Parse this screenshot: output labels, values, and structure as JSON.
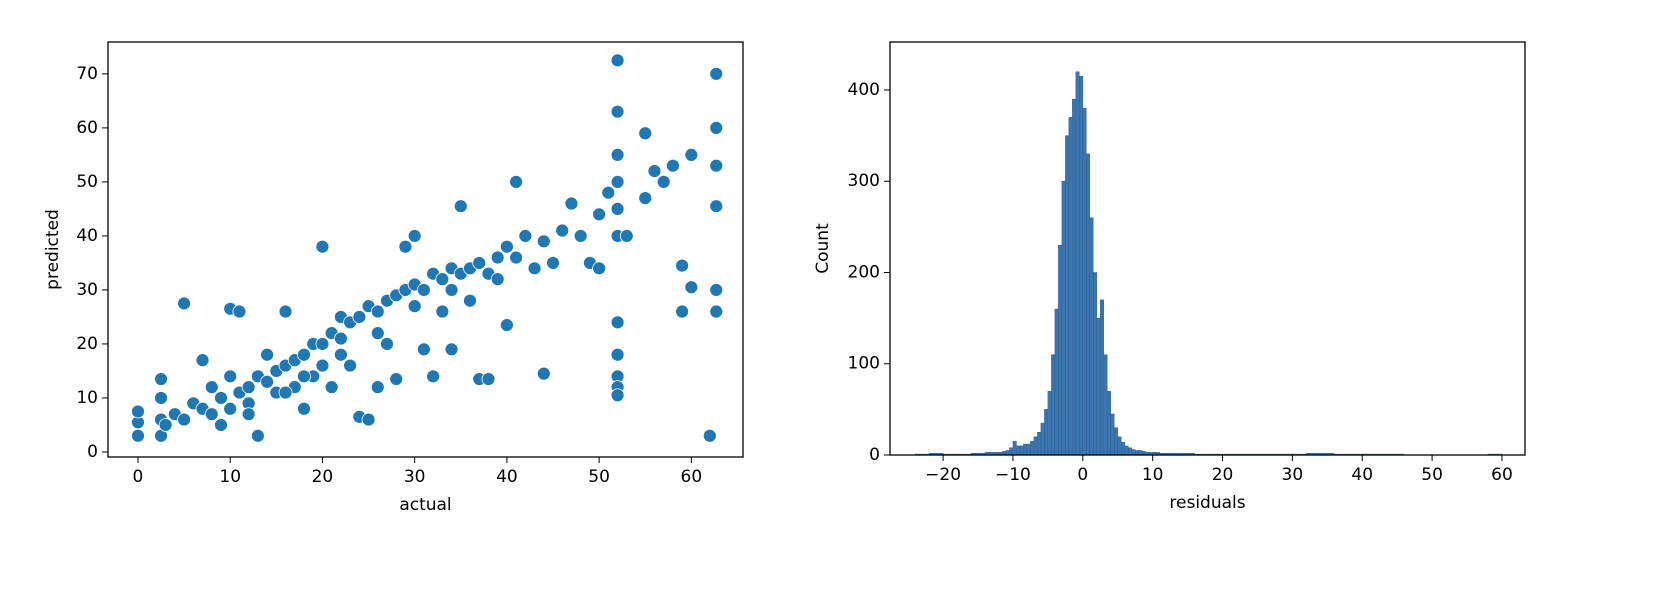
{
  "chart_data": [
    {
      "type": "scatter",
      "xlabel": "actual",
      "ylabel": "predicted",
      "color": "#1f77b4",
      "x": [
        0,
        0,
        0,
        2.5,
        2.5,
        2.5,
        2.5,
        3,
        4,
        5,
        5,
        6,
        7,
        7,
        8,
        8,
        9,
        10,
        10,
        10,
        11,
        11,
        12,
        12,
        13,
        13,
        14,
        14,
        15,
        15,
        16,
        16,
        17,
        17,
        18,
        18,
        19,
        19,
        20,
        20,
        20,
        21,
        21,
        22,
        22,
        23,
        23,
        24,
        24,
        25,
        25,
        26,
        26,
        27,
        27,
        28,
        28,
        29,
        29,
        30,
        30,
        31,
        31,
        32,
        32,
        33,
        33,
        34,
        34,
        35,
        35,
        36,
        36,
        37,
        37,
        38,
        38,
        39,
        39,
        40,
        40,
        41,
        41,
        42,
        43,
        44,
        44,
        45,
        46,
        47,
        48,
        49,
        50,
        50,
        51,
        52,
        52,
        52,
        52,
        52,
        52,
        52,
        52,
        52,
        52,
        52,
        53,
        55,
        55,
        56,
        57,
        58,
        59,
        59,
        60,
        60,
        62,
        62.7,
        62.7,
        62.7,
        62.7,
        62.7,
        62.7,
        16,
        18,
        22,
        26,
        30,
        34,
        12,
        9
      ],
      "values": [
        3,
        5.5,
        7.5,
        3,
        6,
        10,
        13.5,
        5,
        7,
        6,
        27.5,
        9,
        8,
        17,
        7,
        12,
        10,
        8,
        14,
        26.5,
        11,
        26,
        12,
        9,
        14,
        3,
        13,
        18,
        15,
        11,
        16,
        26,
        17,
        12,
        18,
        8,
        20,
        14,
        20,
        38,
        16,
        22,
        12,
        21,
        25,
        24,
        16,
        25,
        6.5,
        27,
        6,
        26,
        12,
        28,
        20,
        29,
        13.5,
        30,
        38,
        31,
        40,
        30,
        19,
        33,
        14,
        32,
        26,
        34,
        19,
        33,
        45.5,
        34,
        28,
        35,
        13.5,
        33,
        13.5,
        36,
        32,
        38,
        23.5,
        36,
        50,
        40,
        34,
        39,
        14.5,
        35,
        41,
        46,
        40,
        35,
        44,
        34,
        48,
        72.5,
        63,
        55,
        50,
        45,
        40,
        24,
        18,
        14,
        12,
        10.5,
        40,
        59,
        47,
        52,
        50,
        53,
        34.5,
        26,
        55,
        30.5,
        3,
        70,
        60,
        53,
        45.5,
        30,
        26,
        11,
        14,
        18,
        22,
        27,
        30,
        7,
        5
      ],
      "xlim": [
        -3.25,
        65.6
      ],
      "ylim": [
        -0.93,
        75.9
      ],
      "xticks": [
        0,
        10,
        20,
        30,
        40,
        50,
        60
      ],
      "yticks": [
        0,
        10,
        20,
        30,
        40,
        50,
        60,
        70
      ]
    },
    {
      "type": "histogram",
      "xlabel": "residuals",
      "ylabel": "Count",
      "color": "#3b75af",
      "bins": [
        -24,
        -22,
        -20,
        -18,
        -16,
        -14,
        -12,
        -11.5,
        -11,
        -10.5,
        -10,
        -9.5,
        -9,
        -8.5,
        -8,
        -7.5,
        -7,
        -6.5,
        -6,
        -5.5,
        -5,
        -4.5,
        -4,
        -3.5,
        -3,
        -2.5,
        -2,
        -1.5,
        -1,
        -0.5,
        0,
        0.5,
        1,
        1.5,
        2,
        2.5,
        3,
        3.5,
        4,
        4.5,
        5,
        5.5,
        6,
        6.5,
        7,
        7.5,
        8,
        8.5,
        9,
        9.5,
        10,
        10.5,
        11,
        11.5,
        12,
        14,
        16,
        18,
        20,
        22,
        24,
        26,
        28,
        30,
        32,
        34,
        36,
        38,
        40,
        42,
        44,
        46,
        48,
        50,
        52,
        54,
        56,
        58,
        60
      ],
      "values": [
        1,
        2,
        1,
        1,
        2,
        3,
        3,
        4,
        5,
        8,
        15,
        10,
        10,
        12,
        12,
        15,
        20,
        25,
        35,
        50,
        70,
        110,
        160,
        230,
        300,
        350,
        370,
        390,
        420,
        415,
        380,
        330,
        260,
        200,
        150,
        170,
        110,
        70,
        45,
        30,
        20,
        14,
        10,
        8,
        6,
        5,
        5,
        4,
        3,
        3,
        3,
        3,
        2,
        2,
        2,
        2,
        1,
        1,
        1,
        1,
        1,
        1,
        1,
        1,
        2,
        2,
        1,
        1,
        1,
        1,
        1,
        0,
        0,
        0,
        0,
        0,
        0,
        1
      ],
      "xlim": [
        -27.6,
        63.3
      ],
      "ylim": [
        0,
        452.6
      ],
      "xticks": [
        {
          "value": -20,
          "label": "−20"
        },
        {
          "value": -10,
          "label": "−10"
        },
        0,
        10,
        20,
        30,
        40,
        50,
        60
      ],
      "yticks": [
        0,
        100,
        200,
        300,
        400
      ]
    }
  ]
}
